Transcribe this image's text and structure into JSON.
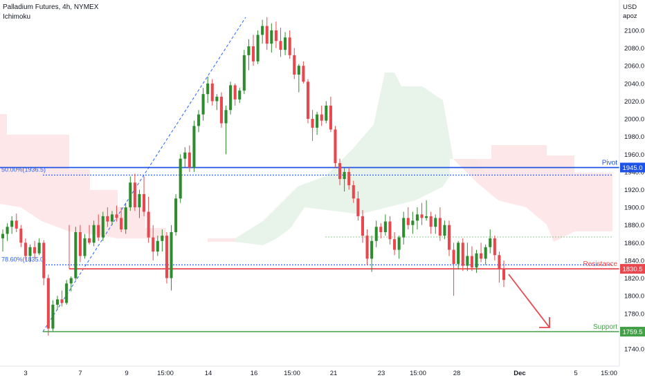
{
  "header": {
    "title": "Palladium Futures, 4h, NYMEX",
    "indicator": "Ichimoku"
  },
  "price_axis": {
    "currency": "USD",
    "unit": "apoz"
  },
  "colors": {
    "up": "#2e8b2e",
    "down": "#e8474d",
    "pivot": "#1e53e5",
    "resistance": "#e8474d",
    "support": "#43a047",
    "fib": "#2962ff",
    "cloud_bull": "#e6f3e7",
    "cloud_bear": "#fde3e4"
  },
  "chart_data": {
    "type": "candlestick",
    "ylim": [
      1736,
      2118
    ],
    "y_ticks": [
      1740,
      1760,
      1780,
      1800,
      1820,
      1840,
      1860,
      1880,
      1900,
      1920,
      1940,
      1960,
      1980,
      2000,
      2020,
      2040,
      2060,
      2080,
      2100
    ],
    "x_labels": [
      "3",
      "7",
      "9",
      "15:00",
      "14",
      "16",
      "15:00",
      "21",
      "23",
      "15:00",
      "28",
      "Dec",
      "5",
      "15:00"
    ],
    "levels": [
      {
        "name": "Pivot",
        "value": 1945.0,
        "label": "Pivot",
        "badge": "1945.0"
      },
      {
        "name": "Resistance",
        "value": 1830.5,
        "label": "Resistance",
        "badge": "1830.5"
      },
      {
        "name": "Support",
        "value": 1759.5,
        "label": "Support",
        "badge": "1759.5"
      }
    ],
    "fib_levels": [
      {
        "label": "50.00%(1936.5)",
        "value": 1936.5
      },
      {
        "label": "78.60%(1835.0)",
        "value": 1835.0
      }
    ],
    "candles": [
      [
        1865,
        1875,
        1850,
        1870
      ],
      [
        1870,
        1882,
        1862,
        1878
      ],
      [
        1878,
        1890,
        1870,
        1885
      ],
      [
        1885,
        1893,
        1872,
        1876
      ],
      [
        1876,
        1880,
        1855,
        1860
      ],
      [
        1860,
        1865,
        1840,
        1845
      ],
      [
        1845,
        1858,
        1838,
        1855
      ],
      [
        1855,
        1862,
        1843,
        1848
      ],
      [
        1848,
        1865,
        1846,
        1860
      ],
      [
        1860,
        1863,
        1812,
        1820
      ],
      [
        1820,
        1824,
        1755,
        1763
      ],
      [
        1763,
        1795,
        1760,
        1790
      ],
      [
        1790,
        1800,
        1784,
        1796
      ],
      [
        1796,
        1806,
        1788,
        1792
      ],
      [
        1792,
        1818,
        1790,
        1814
      ],
      [
        1814,
        1822,
        1805,
        1820
      ],
      [
        1820,
        1878,
        1818,
        1872
      ],
      [
        1872,
        1880,
        1838,
        1845
      ],
      [
        1845,
        1870,
        1842,
        1865
      ],
      [
        1865,
        1880,
        1858,
        1860
      ],
      [
        1860,
        1885,
        1856,
        1880
      ],
      [
        1880,
        1892,
        1862,
        1866
      ],
      [
        1866,
        1895,
        1862,
        1890
      ],
      [
        1890,
        1900,
        1878,
        1884
      ],
      [
        1884,
        1896,
        1880,
        1892
      ],
      [
        1892,
        1902,
        1884,
        1888
      ],
      [
        1888,
        1900,
        1872,
        1875
      ],
      [
        1875,
        1905,
        1870,
        1900
      ],
      [
        1900,
        1935,
        1896,
        1928
      ],
      [
        1928,
        1938,
        1896,
        1900
      ],
      [
        1900,
        1920,
        1888,
        1915
      ],
      [
        1915,
        1935,
        1890,
        1895
      ],
      [
        1895,
        1912,
        1860,
        1866
      ],
      [
        1866,
        1880,
        1840,
        1850
      ],
      [
        1850,
        1868,
        1845,
        1862
      ],
      [
        1862,
        1875,
        1850,
        1868
      ],
      [
        1868,
        1872,
        1814,
        1820
      ],
      [
        1820,
        1880,
        1806,
        1872
      ],
      [
        1872,
        1915,
        1868,
        1910
      ],
      [
        1910,
        1960,
        1905,
        1955
      ],
      [
        1955,
        1968,
        1945,
        1962
      ],
      [
        1962,
        1970,
        1940,
        1945
      ],
      [
        1945,
        1998,
        1940,
        1992
      ],
      [
        1992,
        2010,
        1985,
        2005
      ],
      [
        2005,
        2035,
        1998,
        2028
      ],
      [
        2028,
        2048,
        2018,
        2040
      ],
      [
        2040,
        2045,
        2015,
        2020
      ],
      [
        2020,
        2028,
        2010,
        2025
      ],
      [
        2025,
        2030,
        1990,
        1995
      ],
      [
        1995,
        2015,
        1960,
        2010
      ],
      [
        2010,
        2042,
        2005,
        2038
      ],
      [
        2038,
        2040,
        2015,
        2022
      ],
      [
        2022,
        2035,
        2018,
        2032
      ],
      [
        2032,
        2078,
        2028,
        2072
      ],
      [
        2072,
        2090,
        2055,
        2082
      ],
      [
        2082,
        2095,
        2060,
        2065
      ],
      [
        2065,
        2100,
        2062,
        2095
      ],
      [
        2095,
        2112,
        2085,
        2105
      ],
      [
        2105,
        2115,
        2078,
        2085
      ],
      [
        2085,
        2108,
        2075,
        2100
      ],
      [
        2100,
        2110,
        2080,
        2088
      ],
      [
        2088,
        2103,
        2070,
        2078
      ],
      [
        2078,
        2098,
        2072,
        2092
      ],
      [
        2092,
        2100,
        2068,
        2072
      ],
      [
        2072,
        2080,
        2045,
        2050
      ],
      [
        2050,
        2062,
        2030,
        2060
      ],
      [
        2060,
        2065,
        2040,
        2042
      ],
      [
        2042,
        2045,
        1995,
        2000
      ],
      [
        2000,
        2010,
        1975,
        1990
      ],
      [
        1990,
        2008,
        1982,
        2005
      ],
      [
        2005,
        2015,
        1992,
        1998
      ],
      [
        1998,
        2020,
        1995,
        2015
      ],
      [
        2015,
        2025,
        1985,
        1988
      ],
      [
        1988,
        1992,
        1945,
        1950
      ],
      [
        1950,
        1955,
        1925,
        1932
      ],
      [
        1932,
        1945,
        1918,
        1940
      ],
      [
        1940,
        1945,
        1920,
        1925
      ],
      [
        1925,
        1930,
        1905,
        1910
      ],
      [
        1910,
        1918,
        1885,
        1890
      ],
      [
        1890,
        1897,
        1860,
        1868
      ],
      [
        1868,
        1875,
        1835,
        1842
      ],
      [
        1842,
        1868,
        1827,
        1862
      ],
      [
        1862,
        1885,
        1855,
        1878
      ],
      [
        1878,
        1882,
        1865,
        1872
      ],
      [
        1872,
        1892,
        1868,
        1884
      ],
      [
        1884,
        1890,
        1858,
        1864
      ],
      [
        1864,
        1872,
        1846,
        1852
      ],
      [
        1852,
        1868,
        1842,
        1866
      ],
      [
        1866,
        1895,
        1858,
        1888
      ],
      [
        1888,
        1900,
        1875,
        1880
      ],
      [
        1880,
        1895,
        1870,
        1885
      ],
      [
        1885,
        1900,
        1875,
        1892
      ],
      [
        1892,
        1905,
        1880,
        1888
      ],
      [
        1888,
        1908,
        1885,
        1890
      ],
      [
        1890,
        1895,
        1870,
        1878
      ],
      [
        1878,
        1892,
        1870,
        1888
      ],
      [
        1888,
        1900,
        1862,
        1868
      ],
      [
        1868,
        1885,
        1864,
        1880
      ],
      [
        1880,
        1885,
        1845,
        1852
      ],
      [
        1852,
        1860,
        1800,
        1836
      ],
      [
        1836,
        1862,
        1830,
        1860
      ],
      [
        1860,
        1865,
        1828,
        1834
      ],
      [
        1834,
        1860,
        1828,
        1845
      ],
      [
        1845,
        1856,
        1828,
        1832
      ],
      [
        1832,
        1852,
        1826,
        1848
      ],
      [
        1848,
        1860,
        1838,
        1842
      ],
      [
        1842,
        1858,
        1835,
        1855
      ],
      [
        1855,
        1875,
        1848,
        1865
      ],
      [
        1865,
        1868,
        1840,
        1846
      ],
      [
        1846,
        1850,
        1815,
        1830
      ],
      [
        1830,
        1840,
        1810,
        1818
      ]
    ]
  }
}
